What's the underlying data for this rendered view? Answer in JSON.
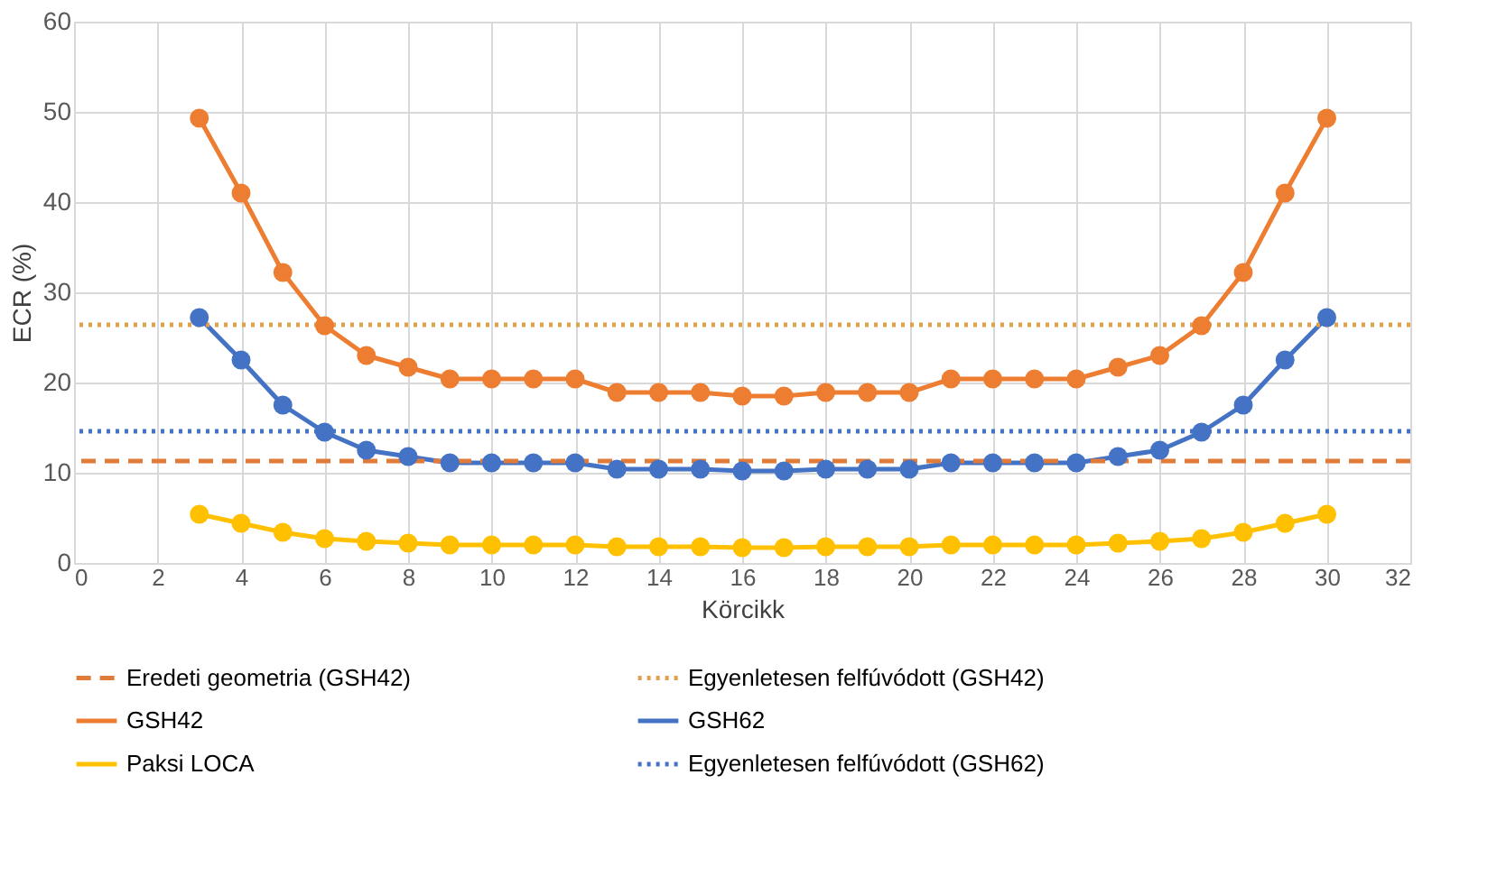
{
  "chart_data": {
    "type": "line",
    "xlabel": "Körcikk",
    "ylabel": "ECR (%)",
    "x": [
      3,
      4,
      5,
      6,
      7,
      8,
      9,
      10,
      11,
      12,
      13,
      14,
      15,
      16,
      17,
      18,
      19,
      20,
      21,
      22,
      23,
      24,
      25,
      26,
      27,
      28,
      29,
      30
    ],
    "xlim": [
      0,
      32
    ],
    "xticks": [
      0,
      2,
      4,
      6,
      8,
      10,
      12,
      14,
      16,
      18,
      20,
      22,
      24,
      26,
      28,
      30,
      32
    ],
    "ylim": [
      0,
      60
    ],
    "yticks": [
      0,
      10,
      20,
      30,
      40,
      50,
      60
    ],
    "grid": true,
    "legend": "bottom",
    "ref_lines": [
      {
        "axis": "y",
        "value": 11.3,
        "label": "Eredeti geometria (GSH42)",
        "color": "#e07b39",
        "line_style": "dashed"
      },
      {
        "axis": "y",
        "value": 26.4,
        "label": "Egyenletesen felfúvódott (GSH42)",
        "color": "#e0a050",
        "line_style": "dotted"
      },
      {
        "axis": "y",
        "value": 14.6,
        "label": "Egyenletesen felfúvódott (GSH62)",
        "color": "#4472c4",
        "line_style": "dotted"
      }
    ],
    "series": [
      {
        "name": "GSH42",
        "color": "#ed7d31",
        "marker": "circle",
        "line_style": "solid",
        "values": [
          49.3,
          41,
          32.2,
          26.3,
          23,
          21.7,
          20.4,
          20.4,
          20.4,
          20.4,
          18.9,
          18.9,
          18.9,
          18.5,
          18.5,
          18.9,
          18.9,
          18.9,
          20.4,
          20.4,
          20.4,
          20.4,
          21.7,
          23,
          26.3,
          32.2,
          41,
          49.3
        ]
      },
      {
        "name": "GSH62",
        "color": "#4472c4",
        "marker": "circle",
        "line_style": "solid",
        "values": [
          27.2,
          22.5,
          17.5,
          14.5,
          12.5,
          11.8,
          11.1,
          11.1,
          11.1,
          11.1,
          10.4,
          10.4,
          10.4,
          10.2,
          10.2,
          10.4,
          10.4,
          10.4,
          11.1,
          11.1,
          11.1,
          11.1,
          11.8,
          12.5,
          14.5,
          17.5,
          22.5,
          27.2
        ]
      },
      {
        "name": "Paksi LOCA",
        "color": "#ffc000",
        "marker": "circle",
        "line_style": "solid",
        "values": [
          5.4,
          4.4,
          3.4,
          2.7,
          2.4,
          2.2,
          2.0,
          2.0,
          2.0,
          2.0,
          1.8,
          1.8,
          1.8,
          1.7,
          1.7,
          1.8,
          1.8,
          1.8,
          2.0,
          2.0,
          2.0,
          2.0,
          2.2,
          2.4,
          2.7,
          3.4,
          4.4,
          5.4
        ]
      }
    ]
  }
}
